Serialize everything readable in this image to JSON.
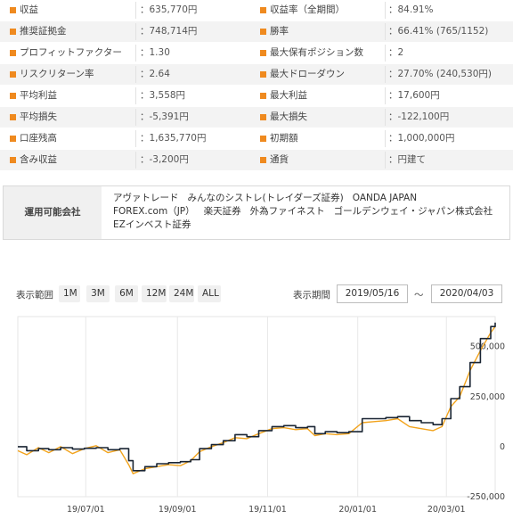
{
  "stats": [
    {
      "label": "収益",
      "value": "：635,770円",
      "label2": "収益率（全期間）",
      "value2": "：84.91%"
    },
    {
      "label": "推奨証拠金",
      "value": "：748,714円",
      "label2": "勝率",
      "value2": "：66.41% (765/1152)"
    },
    {
      "label": "プロフィットファクター",
      "value": "：1.30",
      "label2": "最大保有ポジション数",
      "value2": "：2"
    },
    {
      "label": "リスクリターン率",
      "value": "：2.64",
      "label2": "最大ドローダウン",
      "value2": "：27.70% (240,530円)"
    },
    {
      "label": "平均利益",
      "value": "：3,558円",
      "label2": "最大利益",
      "value2": "：17,600円"
    },
    {
      "label": "平均損失",
      "value": "：-5,391円",
      "label2": "最大損失",
      "value2": "：-122,100円"
    },
    {
      "label": "口座残高",
      "value": "：1,635,770円",
      "label2": "初期額",
      "value2": "：1,000,000円"
    },
    {
      "label": "含み収益",
      "value": "：-3,200円",
      "label2": "通貨",
      "value2": "：円建て"
    }
  ],
  "company": {
    "header": "運用可能会社",
    "names": [
      "アヴァトレード",
      "みんなのシストレ(トレイダーズ証券)",
      "OANDA JAPAN",
      "FOREX.com（JP）",
      "楽天証券",
      "外為ファイネスト",
      "ゴールデンウェイ・ジャパン株式会社",
      "EZインベスト証券"
    ]
  },
  "toolbar": {
    "range_label": "表示範囲",
    "ranges": [
      "1M",
      "3M",
      "6M",
      "12M",
      "24M",
      "ALL"
    ],
    "period_label": "表示期間",
    "start_date": "2019/05/16",
    "tilde": "〜",
    "end_date": "2020/04/03"
  },
  "chart_data": {
    "type": "line",
    "x_tick_labels": [
      "19/07/01",
      "19/09/01",
      "19/11/01",
      "20/01/01",
      "20/03/01"
    ],
    "x_tick_dates": [
      "2019-07-01",
      "2019-09-01",
      "2019-11-01",
      "2020-01-01",
      "2020-03-01"
    ],
    "y_tick_labels": [
      "500,000",
      "250,000",
      "0",
      "-250,000"
    ],
    "y_tick_values": [
      500000,
      250000,
      0,
      -250000
    ],
    "ylim": [
      -250000,
      650000
    ],
    "xlim": [
      "2019-05-16",
      "2020-04-03"
    ],
    "grid": "vertical",
    "colors": {
      "balance": "#1a2533",
      "pnl": "#f2a31c"
    },
    "series": [
      {
        "values": [
          [
            "2019-05-16",
            0
          ],
          [
            "2019-05-22",
            -20000
          ],
          [
            "2019-05-30",
            -10000
          ],
          [
            "2019-06-06",
            -15000
          ],
          [
            "2019-06-14",
            -5000
          ],
          [
            "2019-06-22",
            -12000
          ],
          [
            "2019-06-30",
            -8000
          ],
          [
            "2019-07-08",
            -5000
          ],
          [
            "2019-07-16",
            -15000
          ],
          [
            "2019-07-24",
            -10000
          ],
          [
            "2019-07-30",
            -70000
          ],
          [
            "2019-08-02",
            -120000
          ],
          [
            "2019-08-10",
            -100000
          ],
          [
            "2019-08-18",
            -85000
          ],
          [
            "2019-08-26",
            -80000
          ],
          [
            "2019-09-03",
            -75000
          ],
          [
            "2019-09-10",
            -65000
          ],
          [
            "2019-09-16",
            -10000
          ],
          [
            "2019-09-24",
            10000
          ],
          [
            "2019-10-02",
            30000
          ],
          [
            "2019-10-10",
            60000
          ],
          [
            "2019-10-18",
            50000
          ],
          [
            "2019-10-26",
            80000
          ],
          [
            "2019-11-04",
            100000
          ],
          [
            "2019-11-12",
            105000
          ],
          [
            "2019-11-20",
            95000
          ],
          [
            "2019-11-28",
            100000
          ],
          [
            "2019-12-03",
            65000
          ],
          [
            "2019-12-10",
            75000
          ],
          [
            "2019-12-18",
            70000
          ],
          [
            "2019-12-26",
            75000
          ],
          [
            "2020-01-04",
            140000
          ],
          [
            "2020-01-12",
            140000
          ],
          [
            "2020-01-20",
            145000
          ],
          [
            "2020-01-28",
            150000
          ],
          [
            "2020-02-05",
            130000
          ],
          [
            "2020-02-13",
            120000
          ],
          [
            "2020-02-21",
            110000
          ],
          [
            "2020-02-27",
            140000
          ],
          [
            "2020-03-04",
            240000
          ],
          [
            "2020-03-10",
            300000
          ],
          [
            "2020-03-17",
            420000
          ],
          [
            "2020-03-24",
            540000
          ],
          [
            "2020-03-31",
            600000
          ],
          [
            "2020-04-03",
            620000
          ]
        ]
      },
      {
        "values": [
          [
            "2019-05-16",
            -20000
          ],
          [
            "2019-05-22",
            -40000
          ],
          [
            "2019-05-30",
            -5000
          ],
          [
            "2019-06-06",
            -30000
          ],
          [
            "2019-06-14",
            0
          ],
          [
            "2019-06-22",
            -35000
          ],
          [
            "2019-06-30",
            -10000
          ],
          [
            "2019-07-08",
            5000
          ],
          [
            "2019-07-16",
            -30000
          ],
          [
            "2019-07-24",
            -15000
          ],
          [
            "2019-07-30",
            -90000
          ],
          [
            "2019-08-02",
            -135000
          ],
          [
            "2019-08-10",
            -110000
          ],
          [
            "2019-08-18",
            -100000
          ],
          [
            "2019-08-26",
            -90000
          ],
          [
            "2019-09-03",
            -95000
          ],
          [
            "2019-09-10",
            -70000
          ],
          [
            "2019-09-16",
            -25000
          ],
          [
            "2019-09-24",
            0
          ],
          [
            "2019-10-02",
            20000
          ],
          [
            "2019-10-10",
            45000
          ],
          [
            "2019-10-18",
            40000
          ],
          [
            "2019-10-26",
            65000
          ],
          [
            "2019-11-04",
            90000
          ],
          [
            "2019-11-12",
            95000
          ],
          [
            "2019-11-20",
            85000
          ],
          [
            "2019-11-28",
            90000
          ],
          [
            "2019-12-03",
            55000
          ],
          [
            "2019-12-10",
            65000
          ],
          [
            "2019-12-18",
            60000
          ],
          [
            "2019-12-26",
            65000
          ],
          [
            "2020-01-04",
            120000
          ],
          [
            "2020-01-12",
            125000
          ],
          [
            "2020-01-20",
            130000
          ],
          [
            "2020-01-28",
            140000
          ],
          [
            "2020-02-05",
            100000
          ],
          [
            "2020-02-13",
            90000
          ],
          [
            "2020-02-21",
            80000
          ],
          [
            "2020-02-27",
            100000
          ],
          [
            "2020-03-04",
            200000
          ],
          [
            "2020-03-10",
            250000
          ],
          [
            "2020-03-17",
            380000
          ],
          [
            "2020-03-24",
            480000
          ],
          [
            "2020-03-31",
            570000
          ],
          [
            "2020-04-03",
            600000
          ]
        ]
      }
    ]
  }
}
